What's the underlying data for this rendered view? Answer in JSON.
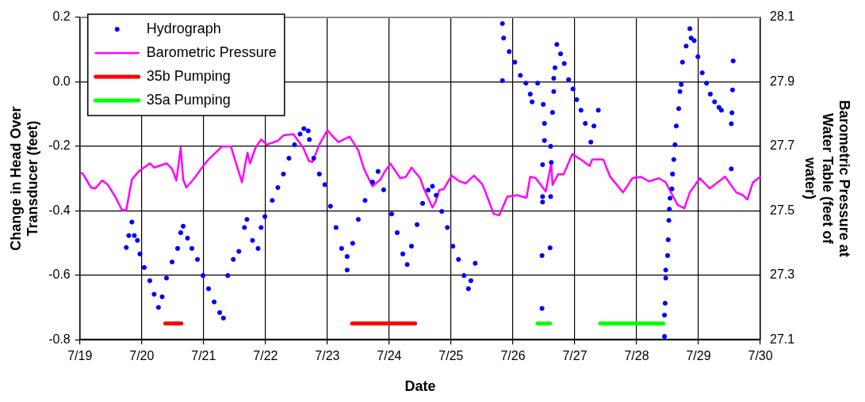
{
  "chart_data": {
    "type": "scatter",
    "xlabel": "Date",
    "ylabel": "Change in Head Over Transducer (feet)",
    "y2label": "Barometric Pressure at Water Table (feet of water)",
    "xlim": [
      "--07-19",
      "--07-30"
    ],
    "xticks": [
      {
        "value": "--07-19",
        "label": "7/19"
      },
      {
        "value": "--07-20",
        "label": "7/20"
      },
      {
        "value": "--07-21",
        "label": "7/21"
      },
      {
        "value": "--07-22",
        "label": "7/22"
      },
      {
        "value": "--07-23",
        "label": "7/23"
      },
      {
        "value": "--07-24",
        "label": "7/24"
      },
      {
        "value": "--07-25",
        "label": "7/25"
      },
      {
        "value": "--07-26",
        "label": "7/26"
      },
      {
        "value": "--07-27",
        "label": "7/27"
      },
      {
        "value": "--07-28",
        "label": "7/28"
      },
      {
        "value": "--07-29",
        "label": "7/29"
      },
      {
        "value": "--07-30",
        "label": "7/30"
      }
    ],
    "ylim": [
      -0.8,
      0.2
    ],
    "yticks": [
      -0.8,
      -0.6,
      -0.4,
      -0.2,
      {
        "value": 0,
        "label": "0.0"
      },
      0.2
    ],
    "y2lim": [
      27.1,
      28.1
    ],
    "y2ticks": [
      27.1,
      27.3,
      27.5,
      27.7,
      27.9,
      28.1
    ],
    "grid": true,
    "legend": "top left",
    "series": [
      {
        "name": "Hydrograph",
        "marker": "circle",
        "color": "#0000ff",
        "x": [
          "--07-19T18:00",
          "--07-19T18:58",
          "--07-19T20:10",
          "--07-19T21:07",
          "--07-19T22:19",
          "--07-19T23:17",
          "--07-20T00:58",
          "--07-20T03:07",
          "--07-20T04:48",
          "--07-20T06:29",
          "--07-20T07:55",
          "--07-20T09:36",
          "--07-20T11:46",
          "--07-20T13:55",
          "--07-20T15:07",
          "--07-20T16:05",
          "--07-20T17:46",
          "--07-20T19:26",
          "--07-20T21:36",
          "--07-20T23:46",
          "--07-21T01:55",
          "--07-21T04:05",
          "--07-21T06:14",
          "--07-21T07:41",
          "--07-21T09:22",
          "--07-21T11:31",
          "--07-21T13:41",
          "--07-21T15:50",
          "--07-21T16:48",
          "--07-21T18:58",
          "--07-21T21:07",
          "--07-21T22:19",
          "--07-21T23:46",
          "--07-22T02:38",
          "--07-22T04:48",
          "--07-22T06:58",
          "--07-22T09:07",
          "--07-22T11:17",
          "--07-22T13:26",
          "--07-22T14:53",
          "--07-22T16:34",
          "--07-22T17:02",
          "--07-22T18:43",
          "--07-22T20:53",
          "--07-22T23:02",
          "--07-23T01:12",
          "--07-23T03:22",
          "--07-23T05:31",
          "--07-23T07:41",
          "--07-23T07:41",
          "--07-23T09:50",
          "--07-23T12:00",
          "--07-23T14:38",
          "--07-23T17:31",
          "--07-23T19:41",
          "--07-23T21:50",
          "--07-24T00:58",
          "--07-24T03:07",
          "--07-24T05:17",
          "--07-24T06:58",
          "--07-24T08:38",
          "--07-24T10:48",
          "--07-24T12:58",
          "--07-24T15:07",
          "--07-24T16:48",
          "--07-24T18:14",
          "--07-24T20:24",
          "--07-24T22:34",
          "--07-25T00:43",
          "--07-25T02:53",
          "--07-25T05:02",
          "--07-25T06:43",
          "--07-25T07:41",
          "--07-25T09:22",
          "--07-25T19:55",
          "--07-25T19:55",
          "--07-25T20:24",
          "--07-25T22:34",
          "--07-26T00:43",
          "--07-26T02:53",
          "--07-26T05:02",
          "--07-26T06:43",
          "--07-26T07:26",
          "--07-26T09:36",
          "--07-26T11:46",
          "--07-26T12:14",
          "--07-26T12:14",
          "--07-26T11:31",
          "--07-26T11:31",
          "--07-26T11:31",
          "--07-26T11:17",
          "--07-26T11:17",
          "--07-26T14:38",
          "--07-26T14:53",
          "--07-26T14:38",
          "--07-26T14:24",
          "--07-26T15:22",
          "--07-26T15:50",
          "--07-26T15:50",
          "--07-26T16:19",
          "--07-26T17:02",
          "--07-26T18:29",
          "--07-26T19:55",
          "--07-26T21:36",
          "--07-26T23:17",
          "--07-27T00:43",
          "--07-27T02:24",
          "--07-27T04:05",
          "--07-27T06:14",
          "--07-27T07:26",
          "--07-27T09:07",
          "--07-28T10:48",
          "--07-28T10:48",
          "--07-28T11:02",
          "--07-28T11:17",
          "--07-28T11:17",
          "--07-28T12:00",
          "--07-28T12:14",
          "--07-28T12:29",
          "--07-28T12:43",
          "--07-28T12:58",
          "--07-28T13:41",
          "--07-28T13:55",
          "--07-28T14:24",
          "--07-28T14:53",
          "--07-28T15:22",
          "--07-28T16:19",
          "--07-28T16:48",
          "--07-28T17:17",
          "--07-28T17:46",
          "--07-28T19:12",
          "--07-28T20:38",
          "--07-28T21:07",
          "--07-28T22:19",
          "--07-28T23:46",
          "--07-29T01:26",
          "--07-29T03:07",
          "--07-29T04:34",
          "--07-29T06:14",
          "--07-29T07:55",
          "--07-29T08:53",
          "--07-29T13:26",
          "--07-29T13:12",
          "--07-29T12:58",
          "--07-29T12:43",
          "--07-29T12:43"
        ],
        "values": [
          -0.514,
          -0.477,
          -0.435,
          -0.477,
          -0.492,
          -0.534,
          -0.576,
          -0.617,
          -0.659,
          -0.7,
          -0.667,
          -0.609,
          -0.559,
          -0.517,
          -0.468,
          -0.448,
          -0.485,
          -0.517,
          -0.551,
          -0.601,
          -0.642,
          -0.683,
          -0.716,
          -0.733,
          -0.601,
          -0.551,
          -0.526,
          -0.452,
          -0.427,
          -0.492,
          -0.517,
          -0.452,
          -0.418,
          -0.368,
          -0.328,
          -0.286,
          -0.237,
          -0.195,
          -0.162,
          -0.145,
          -0.152,
          -0.179,
          -0.237,
          -0.286,
          -0.319,
          -0.386,
          -0.452,
          -0.517,
          -0.542,
          -0.584,
          -0.501,
          -0.427,
          -0.368,
          -0.311,
          -0.278,
          -0.335,
          -0.41,
          -0.468,
          -0.534,
          -0.567,
          -0.51,
          -0.443,
          -0.377,
          -0.336,
          -0.324,
          -0.352,
          -0.402,
          -0.452,
          -0.51,
          -0.551,
          -0.601,
          -0.642,
          -0.617,
          -0.563,
          0.181,
          0.004,
          0.136,
          0.094,
          0.061,
          0.02,
          -0.004,
          -0.038,
          -0.062,
          -0.004,
          -0.07,
          -0.129,
          -0.182,
          -0.257,
          -0.356,
          -0.373,
          -0.539,
          -0.703,
          -0.2,
          -0.25,
          -0.356,
          -0.515,
          -0.095,
          -0.03,
          0.011,
          0.044,
          0.116,
          0.087,
          0.057,
          0.007,
          -0.022,
          -0.055,
          -0.088,
          -0.129,
          -0.187,
          -0.137,
          -0.088,
          -0.79,
          -0.724,
          -0.687,
          -0.609,
          -0.584,
          -0.539,
          -0.49,
          -0.43,
          -0.395,
          -0.361,
          -0.332,
          -0.286,
          -0.241,
          -0.195,
          -0.137,
          -0.083,
          -0.03,
          -0.008,
          0.061,
          0.111,
          0.165,
          0.136,
          0.128,
          0.078,
          0.028,
          -0.004,
          -0.038,
          -0.062,
          -0.079,
          -0.088,
          0.065,
          -0.025,
          -0.096,
          -0.13,
          -0.27
        ]
      },
      {
        "name": "Barometric Pressure",
        "type": "line",
        "marker": "none",
        "line_style": "solid",
        "axis": "y2",
        "color": "#ff00ff",
        "x": [
          "--07-19T00:00",
          "--07-19T01:12",
          "--07-19T04:19",
          "--07-19T06:00",
          "--07-19T08:38",
          "--07-19T10:48",
          "--07-19T13:41",
          "--07-19T16:19",
          "--07-19T18:00",
          "--07-19T20:10",
          "--07-19T22:48",
          "--07-20T03:07",
          "--07-20T04:48",
          "--07-20T09:36",
          "--07-20T11:46",
          "--07-20T13:26",
          "--07-20T15:07",
          "--07-20T16:05",
          "--07-20T17:17",
          "--07-20T20:24",
          "--07-20T23:46",
          "--07-21T01:55",
          "--07-21T07:12",
          "--07-21T10:34",
          "--07-21T14:53",
          "--07-21T17:02",
          "--07-21T18:00",
          "--07-21T20:10",
          "--07-21T22:19",
          "--07-22T00:29",
          "--07-22T04:48",
          "--07-22T06:58",
          "--07-22T10:48",
          "--07-22T14:38",
          "--07-22T16:48",
          "--07-22T18:14",
          "--07-22T20:53",
          "--07-23T00:00",
          "--07-23T02:10",
          "--07-23T04:19",
          "--07-23T08:38",
          "--07-23T12:00",
          "--07-23T14:10",
          "--07-23T17:31",
          "--07-23T20:38",
          "--07-23T22:19",
          "--07-24T00:29",
          "--07-24T04:19",
          "--07-24T06:29",
          "--07-24T08:38",
          "--07-24T12:00",
          "--07-24T13:26",
          "--07-24T16:48",
          "--07-24T18:00",
          "--07-24T19:26",
          "--07-24T21:07",
          "--07-25T00:14",
          "--07-25T03:07",
          "--07-25T05:46",
          "--07-25T08:53",
          "--07-25T12:14",
          "--07-25T16:34",
          "--07-25T18:43",
          "--07-25T21:50",
          "--07-26T01:41",
          "--07-26T05:17",
          "--07-26T06:43",
          "--07-26T08:53",
          "--07-26T12:43",
          "--07-26T14:53",
          "--07-26T15:22",
          "--07-26T17:31",
          "--07-26T19:41",
          "--07-26T23:02",
          "--07-27T02:53",
          "--07-27T05:46",
          "--07-27T06:43",
          "--07-27T11:02",
          "--07-27T13:41",
          "--07-27T18:43",
          "--07-27T22:19",
          "--07-28T01:41",
          "--07-28T04:48",
          "--07-28T08:38",
          "--07-28T11:17",
          "--07-28T15:50",
          "--07-28T18:29",
          "--07-28T20:38",
          "--07-29T00:29",
          "--07-29T04:19",
          "--07-29T10:19",
          "--07-29T14:38",
          "--07-29T17:17",
          "--07-29T18:58",
          "--07-29T21:07",
          "--07-30T00:00"
        ],
        "values": [
          27.62,
          27.614,
          27.572,
          27.569,
          27.594,
          27.581,
          27.544,
          27.502,
          27.502,
          27.597,
          27.622,
          27.647,
          27.634,
          27.647,
          27.63,
          27.594,
          27.696,
          27.597,
          27.572,
          27.601,
          27.638,
          27.659,
          27.7,
          27.7,
          27.588,
          27.68,
          27.647,
          27.696,
          27.721,
          27.705,
          27.717,
          27.734,
          27.738,
          27.696,
          27.655,
          27.651,
          27.705,
          27.75,
          27.73,
          27.713,
          27.73,
          27.688,
          27.631,
          27.576,
          27.597,
          27.622,
          27.646,
          27.601,
          27.605,
          27.634,
          27.601,
          27.569,
          27.51,
          27.527,
          27.564,
          27.567,
          27.609,
          27.592,
          27.585,
          27.609,
          27.581,
          27.49,
          27.486,
          27.544,
          27.548,
          27.54,
          27.606,
          27.601,
          27.56,
          27.647,
          27.58,
          27.613,
          27.613,
          27.676,
          27.656,
          27.639,
          27.659,
          27.659,
          27.606,
          27.557,
          27.601,
          27.605,
          27.591,
          27.601,
          27.588,
          27.519,
          27.507,
          27.557,
          27.601,
          27.569,
          27.606,
          27.557,
          27.548,
          27.535,
          27.588,
          27.606
        ]
      },
      {
        "name": "35b Pumping",
        "type": "line",
        "marker": "none",
        "line_style": "solid",
        "color": "#ff0000",
        "x": [
          "--07-20T09:07",
          "--07-20T15:22",
          "--07-22T00:00",
          "--07-23T09:36",
          "--07-24T10:05"
        ],
        "values": [
          -0.75,
          -0.75,
          null,
          -0.75,
          -0.75
        ]
      },
      {
        "name": "35a Pumping",
        "type": "line",
        "marker": "none",
        "line_style": "solid",
        "color": "#00ff00",
        "x": [
          "--07-26T09:36",
          "--07-26T11:31",
          "--07-26T12:00",
          "--07-26T12:43",
          "--07-26T14:24",
          "--07-27T00:00",
          "--07-27T09:50",
          "--07-28T10:19"
        ],
        "values": [
          -0.75,
          -0.75,
          null,
          -0.75,
          -0.75,
          null,
          -0.75,
          -0.75
        ]
      }
    ]
  }
}
